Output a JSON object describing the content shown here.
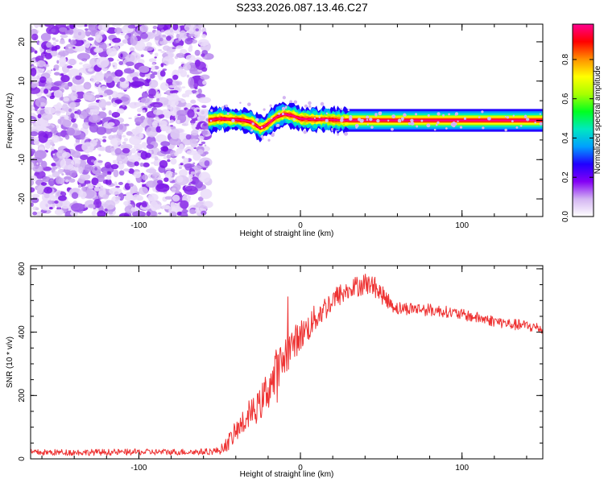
{
  "title": "S233.2026.087.13.46.C27",
  "chart_data": [
    {
      "type": "heatmap",
      "title": "S233.2026.087.13.46.C27",
      "xlabel": "Height of straight line (km)",
      "ylabel": "Frequency (Hz)",
      "xlim": [
        -167,
        150
      ],
      "ylim": [
        -24.5,
        24.5
      ],
      "x_ticks": [
        -100,
        0,
        100
      ],
      "y_ticks": [
        -20,
        -10,
        0,
        10,
        20
      ],
      "noise_region_x": [
        -167,
        -57
      ],
      "signal_centerline": [
        [
          -57,
          0.0
        ],
        [
          -50,
          0.4
        ],
        [
          -45,
          0.3
        ],
        [
          -40,
          0.2
        ],
        [
          -35,
          0.0
        ],
        [
          -30,
          -0.5
        ],
        [
          -25,
          -2.0
        ],
        [
          -22,
          -1.5
        ],
        [
          -18,
          -0.2
        ],
        [
          -15,
          0.8
        ],
        [
          -10,
          1.6
        ],
        [
          -5,
          1.2
        ],
        [
          0,
          0.4
        ],
        [
          5,
          0.3
        ],
        [
          10,
          0.2
        ],
        [
          15,
          0.3
        ],
        [
          25,
          0.0
        ],
        [
          150,
          0.0
        ]
      ],
      "grid": false,
      "colorbar": {
        "label": "Normalized spectral amplitude",
        "ticks": [
          0.0,
          0.2,
          0.4,
          0.6,
          0.8
        ],
        "range": [
          0,
          0.98
        ],
        "colors": [
          "#ffffff",
          "#d3b5f2",
          "#8400f5",
          "#2000ff",
          "#00a0ff",
          "#00e8c0",
          "#00ff20",
          "#a8ff00",
          "#ffff00",
          "#ff9000",
          "#ff0000",
          "#ff0090"
        ]
      }
    },
    {
      "type": "line",
      "xlabel": "Height of straight line (km)",
      "ylabel": "SNR (10 * v/v)",
      "xlim": [
        -167,
        150
      ],
      "ylim": [
        0,
        610
      ],
      "x_ticks": [
        -100,
        0,
        100
      ],
      "y_ticks": [
        0,
        200,
        400,
        600
      ],
      "grid": false,
      "series": [
        {
          "color": "#ee3333",
          "x": [
            -167,
            -60,
            -50,
            -45,
            -40,
            -35,
            -30,
            -25,
            -20,
            -15,
            -12,
            -10,
            -5,
            0,
            5,
            10,
            15,
            20,
            25,
            30,
            35,
            40,
            45,
            50,
            55,
            60,
            70,
            80,
            90,
            100,
            110,
            120,
            130,
            140,
            150
          ],
          "values": [
            20,
            22,
            26,
            50,
            85,
            115,
            145,
            170,
            225,
            260,
            290,
            325,
            360,
            390,
            415,
            450,
            475,
            500,
            520,
            530,
            545,
            555,
            545,
            520,
            495,
            475,
            475,
            470,
            465,
            455,
            445,
            435,
            425,
            420,
            410
          ],
          "noise_amplitude": [
            10,
            10,
            12,
            25,
            35,
            40,
            45,
            50,
            70,
            90,
            80,
            70,
            55,
            50,
            45,
            45,
            40,
            40,
            35,
            35,
            35,
            35,
            30,
            30,
            25,
            22,
            20,
            20,
            18,
            18,
            18,
            18,
            18,
            18,
            18
          ]
        }
      ]
    }
  ]
}
